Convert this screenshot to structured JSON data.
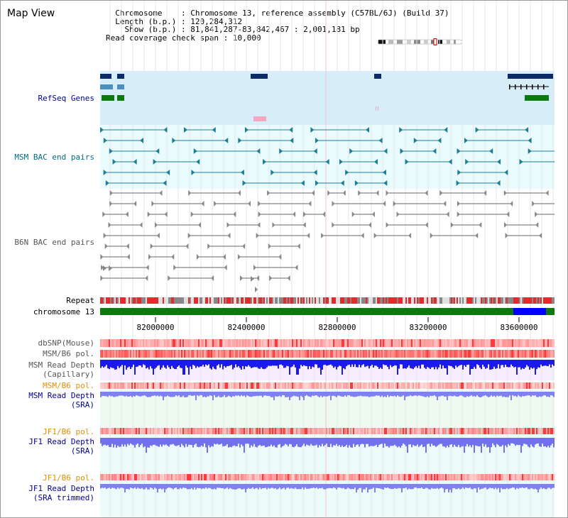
{
  "title": "Map View",
  "info": {
    "chromosome_label": "Chromosome",
    "chromosome_value": "Chromosome 13, reference assembly (C57BL/6J) (Build 37)",
    "length_label": "Length (b.p.)",
    "length_value": "120,284,312",
    "show_label": "Show (b.p.)",
    "show_value": "81,841,287-83,842,467 : 2,001,181 bp",
    "coverage_label": "Read coverage check span",
    "coverage_value": "10,000"
  },
  "colors": {
    "refseq_bg": "#d6eefa",
    "bac_bg": "#e9fbfd",
    "teal": "#1a7f95",
    "gray": "#666666",
    "red": "#e8282b",
    "blue": "#0000ff",
    "green": "#0c7a0c",
    "navy": "#0b2a66",
    "pink": "#f6a6c0"
  },
  "tracks": [
    {
      "id": "refseq",
      "label": "RefSeq Genes"
    },
    {
      "id": "msm_bac",
      "label": "MSM BAC end pairs"
    },
    {
      "id": "b6n_bac",
      "label": "B6N BAC end pairs"
    },
    {
      "id": "repeat",
      "label": "Repeat"
    },
    {
      "id": "chromosome",
      "label": "chromosome 13"
    },
    {
      "id": "dbsnp",
      "label": "dbSNP(Mouse)"
    },
    {
      "id": "msm_b6_pol",
      "label": "MSM/B6 pol."
    },
    {
      "id": "msm_depth_cap",
      "label": "MSM Read Depth",
      "label2": "(Capillary)"
    },
    {
      "id": "msm_b6_pol_sra",
      "label": "MSM/B6 pol."
    },
    {
      "id": "msm_depth_sra",
      "label": "MSM Read Depth",
      "label2": "(SRA)"
    },
    {
      "id": "jf1_b6_pol",
      "label": "JF1/B6 pol."
    },
    {
      "id": "jf1_depth",
      "label": "JF1 Read Depth",
      "label2": "(SRA)"
    },
    {
      "id": "jf1_b6_pol_trim",
      "label": "JF1/B6 pol."
    },
    {
      "id": "jf1_depth_trim",
      "label": "JF1 Read Depth",
      "label2": "(SRA trimmed)"
    }
  ],
  "axis": {
    "start": 81841287,
    "end": 83842467,
    "ticks": [
      "82000000",
      "82400000",
      "82800000",
      "83200000",
      "83600000"
    ]
  }
}
